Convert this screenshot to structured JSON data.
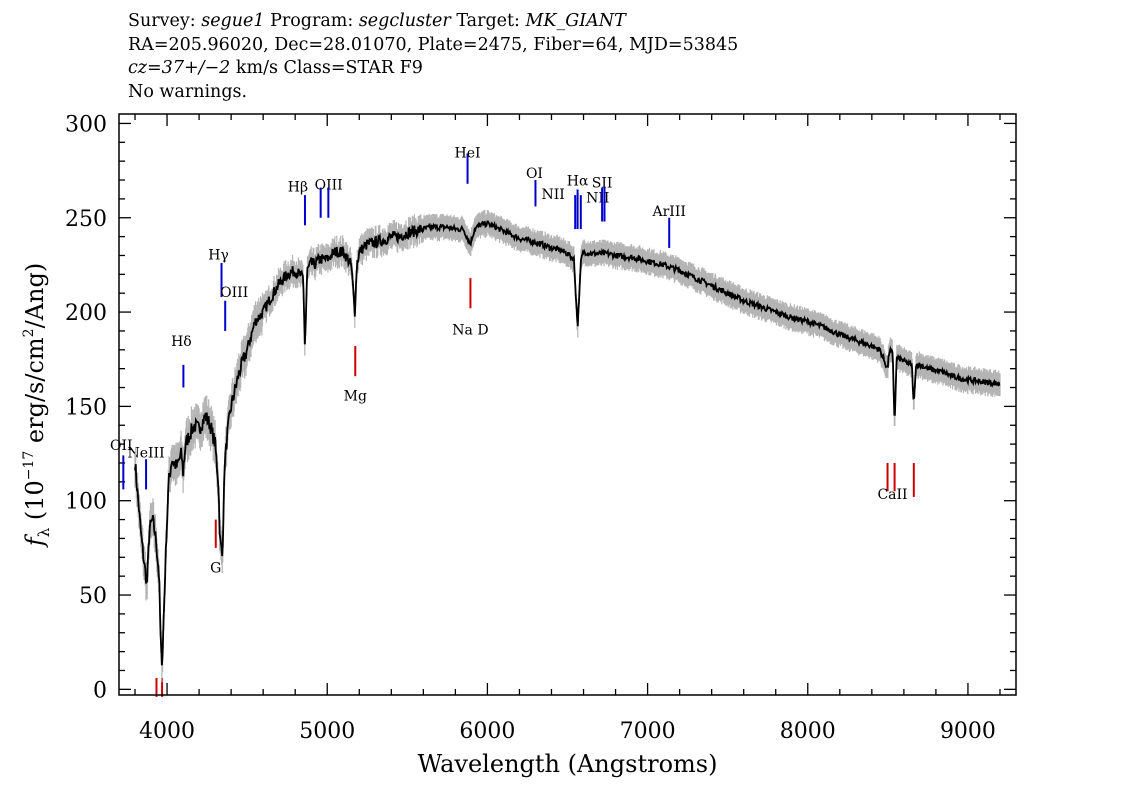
{
  "header": {
    "line1": {
      "survey_label": "Survey: ",
      "survey": "segue1",
      "program_label": " Program: ",
      "program": "segcluster",
      "target_label": " Target: ",
      "target": "MK_GIANT"
    },
    "line2": "RA=205.96020, Dec=28.01070, Plate=2475, Fiber=64, MJD=53845",
    "line3": {
      "cz": "cz=37+/−2",
      "rest": " km/s Class=STAR F9"
    },
    "line4": "No warnings."
  },
  "chart_data": {
    "type": "line",
    "xlabel": "Wavelength (Angstroms)",
    "ylabel": "fλ (10⁻¹⁷ erg/s/cm²/Ang)",
    "xlim": [
      3700,
      9300
    ],
    "ylim": [
      -3,
      305
    ],
    "x_ticks": [
      4000,
      5000,
      6000,
      7000,
      8000,
      9000
    ],
    "y_ticks": [
      0,
      50,
      100,
      150,
      200,
      250,
      300
    ],
    "x_minor_step": 200,
    "y_minor_step": 10,
    "grid": false,
    "series": [
      {
        "color": "#000000",
        "error_color": "#b4b4b4",
        "x": [
          3800,
          3820,
          3840,
          3860,
          3875,
          3890,
          3910,
          3930,
          3950,
          3962,
          3970,
          3980,
          3995,
          4010,
          4030,
          4060,
          4090,
          4100,
          4115,
          4140,
          4170,
          4200,
          4240,
          4270,
          4300,
          4320,
          4330,
          4345,
          4360,
          4380,
          4400,
          4450,
          4500,
          4550,
          4600,
          4650,
          4700,
          4750,
          4800,
          4850,
          4861,
          4875,
          4900,
          4920,
          4950,
          5000,
          5050,
          5100,
          5150,
          5172,
          5185,
          5200,
          5250,
          5300,
          5350,
          5400,
          5450,
          5500,
          5550,
          5600,
          5650,
          5700,
          5750,
          5800,
          5850,
          5893,
          5920,
          5950,
          6000,
          6050,
          6100,
          6150,
          6200,
          6300,
          6400,
          6450,
          6500,
          6540,
          6563,
          6585,
          6600,
          6650,
          6700,
          6750,
          6800,
          6900,
          7000,
          7100,
          7200,
          7300,
          7400,
          7500,
          7600,
          7700,
          7800,
          7900,
          8000,
          8100,
          8200,
          8300,
          8400,
          8450,
          8498,
          8510,
          8530,
          8542,
          8555,
          8580,
          8620,
          8650,
          8662,
          8675,
          8700,
          8750,
          8800,
          8850,
          8900,
          9000,
          9100,
          9200
        ],
        "y": [
          120,
          100,
          80,
          65,
          55,
          85,
          90,
          80,
          60,
          20,
          15,
          40,
          80,
          110,
          122,
          118,
          125,
          115,
          130,
          135,
          140,
          138,
          145,
          140,
          130,
          110,
          80,
          70,
          120,
          138,
          150,
          168,
          180,
          195,
          200,
          208,
          215,
          220,
          222,
          218,
          180,
          222,
          226,
          225,
          228,
          228,
          232,
          232,
          225,
          200,
          225,
          232,
          236,
          237,
          238,
          240,
          240,
          242,
          243,
          244,
          245,
          245,
          245,
          244,
          244,
          236,
          244,
          246,
          247,
          245,
          243,
          241,
          239,
          237,
          234,
          233,
          231,
          228,
          192,
          228,
          232,
          231,
          231,
          231,
          230,
          229,
          227,
          225,
          222,
          218,
          214,
          210,
          206,
          203,
          200,
          197,
          195,
          192,
          188,
          185,
          182,
          180,
          170,
          180,
          178,
          140,
          176,
          175,
          173,
          172,
          150,
          172,
          172,
          170,
          169,
          168,
          166,
          164,
          163,
          162
        ]
      }
    ],
    "emission_lines": [
      {
        "label": "OII",
        "x": 3727,
        "color": "#0000cc"
      },
      {
        "label": "NeIII",
        "x": 3869,
        "color": "#0000cc"
      },
      {
        "label": "Hδ",
        "x": 4102,
        "color": "#0000cc"
      },
      {
        "label": "Hγ",
        "x": 4340,
        "color": "#0000cc"
      },
      {
        "label": "OIII",
        "x": 4363,
        "color": "#0000cc"
      },
      {
        "label": "Hβ",
        "x": 4861,
        "color": "#0000cc"
      },
      {
        "label": "OIII",
        "x": 4959,
        "color": "#0000cc"
      },
      {
        "label": "",
        "x": 5007,
        "color": "#0000cc"
      },
      {
        "label": "HeI",
        "x": 5876,
        "color": "#0000cc"
      },
      {
        "label": "OI",
        "x": 6300,
        "color": "#0000cc"
      },
      {
        "label": "NII",
        "x": 6548,
        "color": "#0000cc"
      },
      {
        "label": "Hα",
        "x": 6563,
        "color": "#0000cc"
      },
      {
        "label": "NII",
        "x": 6583,
        "color": "#0000cc"
      },
      {
        "label": "SII",
        "x": 6716,
        "color": "#0000cc"
      },
      {
        "label": "",
        "x": 6731,
        "color": "#0000cc"
      },
      {
        "label": "ArIII",
        "x": 7135,
        "color": "#0000cc"
      }
    ],
    "absorption_lines": [
      {
        "label": "",
        "x": 3934,
        "color": "#cc0000"
      },
      {
        "label": "",
        "x": 3969,
        "color": "#cc0000"
      },
      {
        "label": "G",
        "x": 4304,
        "color": "#cc0000"
      },
      {
        "label": "Mg",
        "x": 5175,
        "color": "#cc0000"
      },
      {
        "label": "Na D",
        "x": 5894,
        "color": "#cc0000"
      },
      {
        "label": "CaII",
        "x": 8498,
        "color": "#cc0000"
      },
      {
        "label": "",
        "x": 8542,
        "color": "#cc0000"
      },
      {
        "label": "",
        "x": 8662,
        "color": "#cc0000"
      }
    ]
  }
}
